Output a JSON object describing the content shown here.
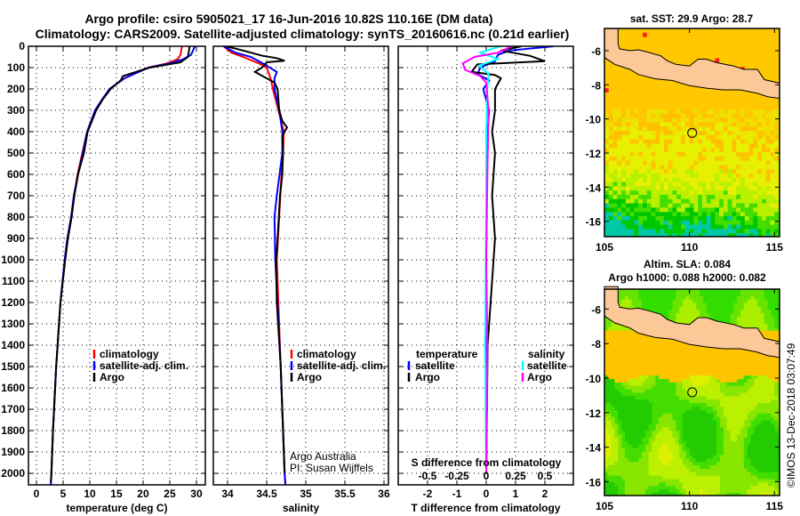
{
  "title": {
    "line1": "Argo profile: csiro 5905021_17 16-Jun-2016 10.82S 110.16E (DM data)",
    "line2": "Climatology: CARS2009. Satellite-adjusted climatology: synTS_20160616.nc (0.21d earlier)"
  },
  "watermark": "©IMOS 13-Dec-2018 03:07:49",
  "chart_data": [
    {
      "type": "line",
      "id": "temperature",
      "xlabel": "temperature (deg C)",
      "ylabel": "",
      "xticks": [
        0,
        5,
        10,
        15,
        20,
        25,
        30
      ],
      "xlim": [
        -1.5,
        31.67
      ],
      "yticks": [
        0,
        100,
        200,
        300,
        400,
        500,
        600,
        700,
        800,
        900,
        1000,
        1100,
        1200,
        1300,
        1400,
        1500,
        1600,
        1700,
        1800,
        1900,
        2000
      ],
      "ylim": [
        0,
        2054
      ],
      "y_inverted": true,
      "grid": true,
      "legend": [
        "climatology",
        "satellite-adj. clim.",
        "Argo"
      ],
      "series": [
        {
          "name": "climatology",
          "color": "#ff0000",
          "points": [
            [
              0,
              27.3
            ],
            [
              40,
              27.0
            ],
            [
              60,
              26.5
            ],
            [
              80,
              24.5
            ],
            [
              100,
              21
            ],
            [
              150,
              16.5
            ],
            [
              200,
              13.7
            ],
            [
              250,
              12.3
            ],
            [
              300,
              11
            ],
            [
              400,
              9.5
            ],
            [
              500,
              8.6
            ],
            [
              600,
              7.7
            ],
            [
              700,
              7.1
            ],
            [
              800,
              6.5
            ],
            [
              900,
              5.8
            ],
            [
              1000,
              5.3
            ],
            [
              1200,
              4.5
            ],
            [
              1500,
              3.7
            ],
            [
              1800,
              3.1
            ],
            [
              2000,
              2.8
            ],
            [
              2054,
              2.7
            ]
          ]
        },
        {
          "name": "satellite-adj. clim.",
          "color": "#0000ff",
          "points": [
            [
              0,
              29.7
            ],
            [
              40,
              29.0
            ],
            [
              60,
              27.6
            ],
            [
              80,
              25
            ],
            [
              100,
              21
            ],
            [
              150,
              16.5
            ],
            [
              200,
              13.7
            ],
            [
              250,
              12.3
            ],
            [
              300,
              11
            ],
            [
              400,
              9.5
            ],
            [
              500,
              8.7
            ],
            [
              600,
              7.8
            ],
            [
              700,
              7.0
            ],
            [
              800,
              6.5
            ],
            [
              900,
              5.8
            ],
            [
              1000,
              5.3
            ],
            [
              1200,
              4.5
            ],
            [
              1500,
              3.7
            ],
            [
              1800,
              3.1
            ],
            [
              2000,
              2.8
            ],
            [
              2054,
              2.7
            ]
          ]
        },
        {
          "name": "Argo",
          "color": "#000000",
          "points": [
            [
              0,
              28.7
            ],
            [
              20,
              28.6
            ],
            [
              50,
              28.4
            ],
            [
              75,
              27.0
            ],
            [
              100,
              21.2
            ],
            [
              140,
              16.2
            ],
            [
              160,
              15.8
            ],
            [
              200,
              13.9
            ],
            [
              250,
              12.4
            ],
            [
              300,
              11.2
            ],
            [
              400,
              9.6
            ],
            [
              500,
              8.9
            ],
            [
              600,
              7.8
            ],
            [
              700,
              7.1
            ],
            [
              800,
              6.6
            ],
            [
              900,
              5.9
            ],
            [
              1000,
              5.4
            ],
            [
              1200,
              4.5
            ],
            [
              1500,
              3.7
            ],
            [
              1800,
              3.1
            ],
            [
              2000,
              2.8
            ],
            [
              2040,
              2.7
            ]
          ]
        }
      ]
    },
    {
      "type": "line",
      "id": "salinity",
      "xlabel": "salinity",
      "xticks": [
        34,
        34.5,
        35,
        35.5,
        36
      ],
      "xtick_labels": [
        "34",
        "34.5",
        "35",
        "35.5",
        "36"
      ],
      "xlim": [
        33.818,
        36.057
      ],
      "ylim": [
        0,
        2054
      ],
      "y_inverted": true,
      "grid": true,
      "legend": [
        "climatology",
        "satellite-adj. clim.",
        "Argo"
      ],
      "annotations": [
        "Argo Australia",
        "PI: Susan Wijffels"
      ],
      "series": [
        {
          "name": "climatology",
          "color": "#ff0000",
          "points": [
            [
              0,
              33.95
            ],
            [
              30,
              34.05
            ],
            [
              50,
              34.2
            ],
            [
              80,
              34.4
            ],
            [
              100,
              34.5
            ],
            [
              150,
              34.55
            ],
            [
              200,
              34.58
            ],
            [
              300,
              34.65
            ],
            [
              400,
              34.72
            ],
            [
              500,
              34.71
            ],
            [
              600,
              34.69
            ],
            [
              800,
              34.66
            ],
            [
              1000,
              34.63
            ],
            [
              1500,
              34.68
            ],
            [
              2000,
              34.73
            ],
            [
              2054,
              34.74
            ]
          ]
        },
        {
          "name": "satellite-adj. clim.",
          "color": "#0000ff",
          "points": [
            [
              0,
              33.95
            ],
            [
              30,
              34.1
            ],
            [
              50,
              34.3
            ],
            [
              80,
              34.45
            ],
            [
              120,
              34.63
            ],
            [
              150,
              34.6
            ],
            [
              200,
              34.6
            ],
            [
              300,
              34.66
            ],
            [
              400,
              34.7
            ],
            [
              500,
              34.7
            ],
            [
              700,
              34.63
            ],
            [
              800,
              34.6
            ],
            [
              1000,
              34.61
            ],
            [
              1500,
              34.68
            ],
            [
              2000,
              34.73
            ],
            [
              2054,
              34.74
            ]
          ]
        },
        {
          "name": "Argo",
          "color": "#000000",
          "points": [
            [
              0,
              33.98
            ],
            [
              20,
              34.2
            ],
            [
              45,
              34.45
            ],
            [
              55,
              34.62
            ],
            [
              68,
              34.73
            ],
            [
              75,
              34.5
            ],
            [
              100,
              34.44
            ],
            [
              120,
              34.35
            ],
            [
              150,
              34.5
            ],
            [
              170,
              34.6
            ],
            [
              200,
              34.64
            ],
            [
              300,
              34.66
            ],
            [
              350,
              34.7
            ],
            [
              380,
              34.76
            ],
            [
              420,
              34.7
            ],
            [
              500,
              34.71
            ],
            [
              600,
              34.7
            ],
            [
              700,
              34.67
            ],
            [
              900,
              34.64
            ],
            [
              1000,
              34.62
            ],
            [
              1200,
              34.63
            ],
            [
              1500,
              34.68
            ],
            [
              1800,
              34.71
            ],
            [
              2000,
              34.73
            ]
          ]
        }
      ]
    },
    {
      "type": "line",
      "id": "difference",
      "xlabel": "T difference from climatology",
      "xticks": [
        -2,
        -1,
        0,
        1,
        2
      ],
      "xlim": [
        -3,
        2.97
      ],
      "secondary_xlabel": "S difference from climatology",
      "secondary_xticks": [
        "-0.5",
        "-0.25",
        "0",
        "0.25",
        "0.5"
      ],
      "s_per_t": 0.25,
      "ylim": [
        0,
        2054
      ],
      "y_inverted": true,
      "grid": true,
      "legend": {
        "temperature": {
          "heading": "temperature",
          "items": [
            {
              "label": "satellite",
              "color": "#0000ff"
            },
            {
              "label": "Argo",
              "color": "#000000"
            }
          ]
        },
        "salinity": {
          "heading": "salinity",
          "items": [
            {
              "label": "satellite",
              "color": "#00ffff"
            },
            {
              "label": "Argo",
              "color": "#ff00ff"
            }
          ]
        }
      },
      "series": [
        {
          "name": "T satellite",
          "kind": "T",
          "color": "#0000ff",
          "points": [
            [
              0,
              2.3
            ],
            [
              20,
              0.8
            ],
            [
              40,
              0.4
            ],
            [
              70,
              0.3
            ],
            [
              100,
              -0.2
            ],
            [
              130,
              -0.3
            ],
            [
              160,
              0.1
            ],
            [
              200,
              -0.1
            ],
            [
              300,
              0.1
            ],
            [
              400,
              0.05
            ],
            [
              600,
              0
            ],
            [
              1000,
              0
            ],
            [
              1500,
              0
            ],
            [
              2000,
              0
            ]
          ]
        },
        {
          "name": "T Argo",
          "kind": "T",
          "color": "#000000",
          "points": [
            [
              0,
              1.2
            ],
            [
              20,
              0.5
            ],
            [
              45,
              1.5
            ],
            [
              60,
              1.8
            ],
            [
              70,
              2.0
            ],
            [
              85,
              -0.3
            ],
            [
              120,
              -0.5
            ],
            [
              135,
              0.3
            ],
            [
              150,
              0.5
            ],
            [
              200,
              0.3
            ],
            [
              300,
              0.3
            ],
            [
              400,
              0.2
            ],
            [
              500,
              0.3
            ],
            [
              700,
              0.2
            ],
            [
              900,
              0.3
            ],
            [
              1100,
              0.2
            ],
            [
              1400,
              0.05
            ],
            [
              2000,
              0
            ]
          ]
        },
        {
          "name": "S satellite",
          "kind": "S",
          "color": "#00ffff",
          "points": [
            [
              0,
              0.12
            ],
            [
              30,
              -0.05
            ],
            [
              60,
              0.1
            ],
            [
              90,
              -0.06
            ],
            [
              130,
              0.02
            ],
            [
              200,
              0.01
            ],
            [
              400,
              0
            ],
            [
              800,
              0
            ],
            [
              1400,
              -0.01
            ],
            [
              2000,
              0
            ]
          ]
        },
        {
          "name": "S Argo",
          "kind": "S",
          "color": "#ff00ff",
          "points": [
            [
              0,
              0.22
            ],
            [
              30,
              0.1
            ],
            [
              50,
              -0.1
            ],
            [
              80,
              -0.2
            ],
            [
              110,
              -0.18
            ],
            [
              140,
              -0.05
            ],
            [
              170,
              0
            ],
            [
              300,
              0.02
            ],
            [
              600,
              0.01
            ],
            [
              1000,
              0
            ],
            [
              1400,
              0.01
            ],
            [
              2000,
              0
            ]
          ]
        }
      ]
    },
    {
      "type": "heatmap",
      "id": "sst-map",
      "title": "sat. SST: 29.9 Argo: 28.7",
      "xticks": [
        105,
        110,
        115
      ],
      "yticks": [
        -6,
        -8,
        -10,
        -12,
        -14,
        -16
      ],
      "xlim": [
        105,
        115.3
      ],
      "ylim": [
        -16.9,
        -4.7
      ],
      "profile_location": [
        110.16,
        -10.82
      ]
    },
    {
      "type": "heatmap",
      "id": "sla-map",
      "title": "Altim. SLA: 0.084",
      "subtitle": "Argo h1000: 0.088 h2000: 0.082",
      "xticks": [
        105,
        110,
        115
      ],
      "yticks": [
        -6,
        -8,
        -10,
        -12,
        -14,
        -16
      ],
      "xlim": [
        105,
        115.3
      ],
      "ylim": [
        -16.8,
        -4.85
      ],
      "profile_location": [
        110.16,
        -10.82
      ]
    }
  ]
}
